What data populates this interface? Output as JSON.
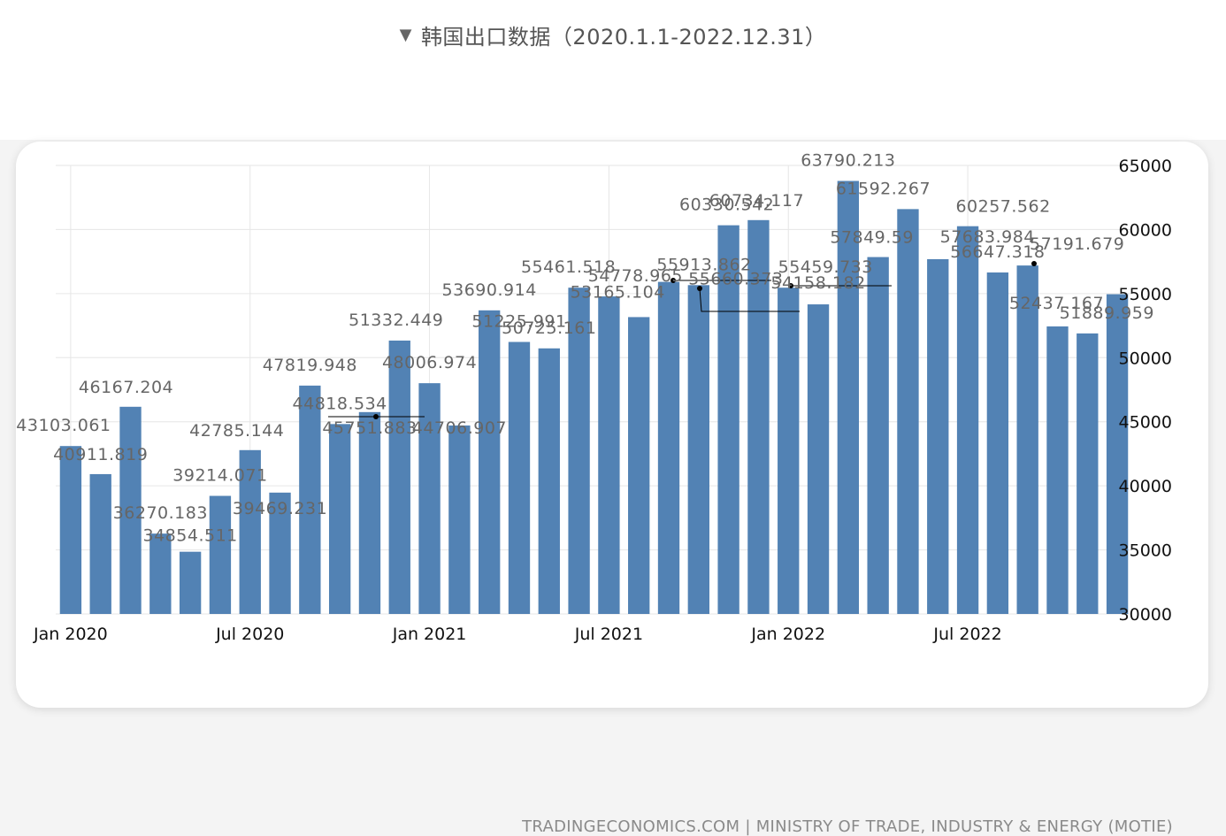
{
  "page": {
    "title": "韩国出口数据（2020.1.1-2022.12.31）",
    "source": "TRADINGECONOMICS.COM | MINISTRY OF TRADE, INDUSTRY & ENERGY (MOTIE)",
    "icons": {
      "collapse": "triangle-down-icon"
    }
  },
  "colors": {
    "bar": "#5282b4",
    "grid": "#e6e6e6",
    "label": "#666666",
    "axis_text": "#111111"
  },
  "chart_data": {
    "type": "bar",
    "x_tick_labels": [
      "Jan 2020",
      "Jul 2020",
      "Jan 2021",
      "Jul 2021",
      "Jan 2022",
      "Jul 2022"
    ],
    "x_tick_indices": [
      0,
      6,
      12,
      18,
      24,
      30
    ],
    "ylim": [
      30000,
      65000
    ],
    "y_ticks": [
      30000,
      35000,
      40000,
      45000,
      50000,
      55000,
      60000,
      65000
    ],
    "grid": true,
    "y_axis_position": "right",
    "values": [
      43103.061,
      40911.819,
      46167.204,
      36270.183,
      34854.511,
      39214.071,
      42785.144,
      39469.231,
      47819.948,
      44818.534,
      45751.883,
      51332.449,
      48006.974,
      44706.907,
      53690.914,
      51225.991,
      50725.161,
      55461.518,
      54778.965,
      53165.104,
      55913.862,
      55660.373,
      60330.542,
      60734.117,
      55459.733,
      54158.182,
      63790.213,
      57849.59,
      61592.267,
      57683.984,
      60257.562,
      56647.318,
      57191.679,
      52437.167,
      51889.959,
      54950
    ],
    "data_labels": [
      "43103.061",
      "40911.819",
      "46167.204",
      "36270.183",
      "34854.511",
      "39214.071",
      "42785.144",
      "39469.231",
      "47819.948",
      "44818.534",
      "45751.883",
      "51332.449",
      "48006.974",
      "44706.907",
      "53690.914",
      "51225.991",
      "50725.161",
      "55461.518",
      "54778.965",
      "53165.104",
      "55913.862",
      "55660.373",
      "60330.542",
      "60734.117",
      "55459.733",
      "54158.182",
      "63790.213",
      "57849.59",
      "61592.267",
      "57683.984",
      "60257.562",
      "56647.318",
      "57191.679",
      "52437.167",
      "51889.959",
      ""
    ]
  }
}
